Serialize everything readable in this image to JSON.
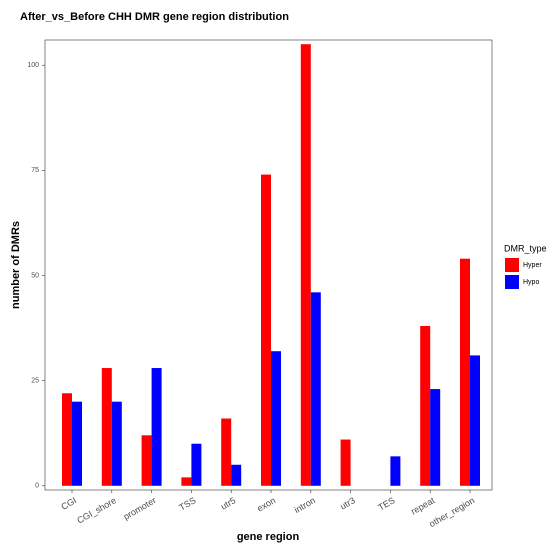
{
  "chart_data": {
    "type": "bar",
    "title": "After_vs_Before  CHH  DMR  gene region  distribution",
    "x_label": "gene    region",
    "y_label": "number    of    DMRs",
    "categories": [
      "CGI",
      "CGI_shore",
      "promoter",
      "TSS",
      "utr5",
      "exon",
      "intron",
      "utr3",
      "TES",
      "repeat",
      "other_region"
    ],
    "series": [
      {
        "name": "Hyper",
        "color": "#ff0000",
        "values": [
          22,
          28,
          12,
          2,
          16,
          74,
          105,
          11,
          0,
          38,
          54
        ]
      },
      {
        "name": "Hypo",
        "color": "#0000ff",
        "values": [
          20,
          20,
          28,
          10,
          5,
          32,
          46,
          0,
          7,
          23,
          31
        ]
      }
    ],
    "legend_title": "DMR_type",
    "legend_position": "right",
    "ylim": [
      -1,
      106
    ],
    "yticks": [
      0,
      25,
      50,
      75,
      100
    ],
    "grid": false
  }
}
